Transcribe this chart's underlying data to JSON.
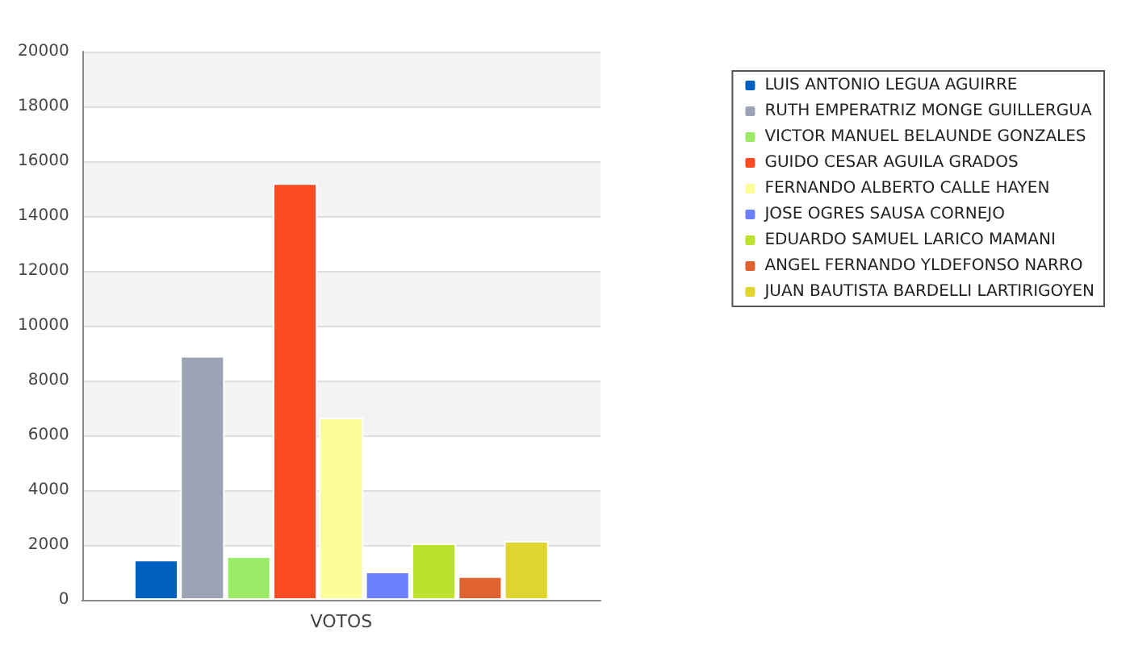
{
  "chart_data": {
    "type": "bar",
    "categories": [
      "VOTOS"
    ],
    "series": [
      {
        "name": "LUIS ANTONIO LEGUA AGUIRRE",
        "color": "#0060bf",
        "values": [
          1460
        ]
      },
      {
        "name": "RUTH EMPERATRIZ MONGE GUILLERGUA",
        "color": "#9ca3b5",
        "values": [
          8900
        ]
      },
      {
        "name": "VICTOR MANUEL BELAUNDE GONZALES",
        "color": "#9ceb68",
        "values": [
          1590
        ]
      },
      {
        "name": "GUIDO CESAR AGUILA GRADOS",
        "color": "#ff4b24",
        "values": [
          15200
        ]
      },
      {
        "name": "FERNANDO ALBERTO CALLE HAYEN",
        "color": "#fcfc98",
        "values": [
          6650
        ]
      },
      {
        "name": "JOSE OGRES SAUSA CORNEJO",
        "color": "#6b81fc",
        "values": [
          1030
        ]
      },
      {
        "name": "EDUARDO SAMUEL LARICO MAMANI",
        "color": "#bce22e",
        "values": [
          2060
        ]
      },
      {
        "name": "ANGEL FERNANDO YLDEFONSO NARRO",
        "color": "#e0622e",
        "values": [
          860
        ]
      },
      {
        "name": "JUAN BAUTISTA BARDELLI LARTIRIGOYEN",
        "color": "#e0d42e",
        "values": [
          2150
        ]
      }
    ],
    "ylim": [
      0,
      20000
    ],
    "yticks": [
      0,
      2000,
      4000,
      6000,
      8000,
      10000,
      12000,
      14000,
      16000,
      18000,
      20000
    ],
    "grid": "y",
    "legend": "right"
  }
}
